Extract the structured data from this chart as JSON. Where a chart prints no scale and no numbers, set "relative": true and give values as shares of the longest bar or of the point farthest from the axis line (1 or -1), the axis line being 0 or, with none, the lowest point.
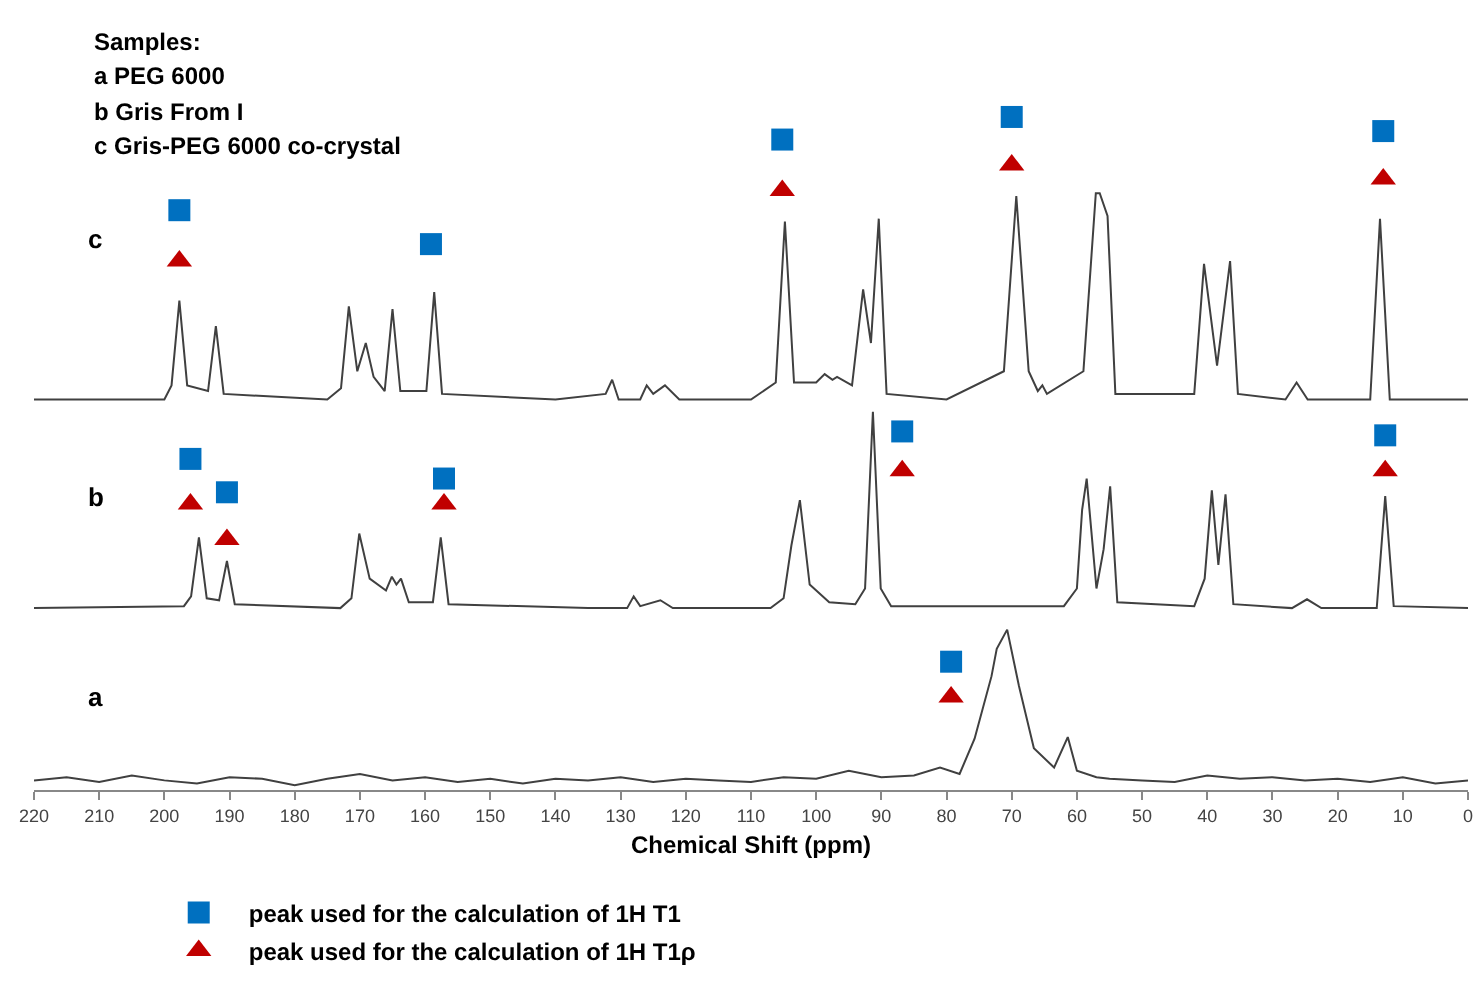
{
  "chart_data": [
    {
      "type": "line",
      "relative": true,
      "xlim": [
        220,
        0
      ],
      "tick_labels": false,
      "annotations": [
        "c",
        "Samples:",
        "a PEG 6000",
        "b Gris From I",
        "c Gris-PEG 6000 co-crystal"
      ],
      "series": [
        {
          "type": "line",
          "color": "#404040",
          "x": [
            220,
            200,
            198.9,
            197.7,
            196.5,
            193.3,
            192.1,
            190.9,
            175,
            172.9,
            171.7,
            170.4,
            169.1,
            167.9,
            166.2,
            165.0,
            163.8,
            159.8,
            158.6,
            157.4,
            140,
            132.3,
            131.3,
            130.3,
            127,
            126,
            125,
            123.2,
            121,
            110,
            106.2,
            104.8,
            103.4,
            100,
            98.7,
            97.5,
            96.8,
            94.5,
            92.8,
            91.6,
            90.4,
            89.2,
            80,
            71.2,
            69.3,
            67.4,
            66,
            65.3,
            64.6,
            59,
            57.1,
            56.5,
            55.3,
            54.1,
            42,
            40.5,
            38.5,
            36.5,
            35.3,
            28,
            26.3,
            24.6,
            15,
            13.5,
            12,
            0
          ],
          "values": [
            0,
            0,
            0.05,
            0.35,
            0.05,
            0.03,
            0.26,
            0.02,
            0,
            0.04,
            0.33,
            0.1,
            0.2,
            0.08,
            0.03,
            0.32,
            0.03,
            0.03,
            0.38,
            0.02,
            0,
            0.02,
            0.07,
            0,
            0,
            0.05,
            0.02,
            0.05,
            0,
            0,
            0.06,
            0.63,
            0.06,
            0.06,
            0.09,
            0.07,
            0.08,
            0.05,
            0.39,
            0.2,
            0.64,
            0.02,
            0,
            0.1,
            0.72,
            0.1,
            0.03,
            0.05,
            0.02,
            0.1,
            0.73,
            0.73,
            0.65,
            0.02,
            0.02,
            0.48,
            0.12,
            0.49,
            0.02,
            0,
            0.06,
            0,
            0,
            0.64,
            0,
            0
          ]
        },
        {
          "type": "scatter",
          "marker": "square",
          "color": "#0070c0",
          "x": [
            197.7,
            159.1,
            105.2,
            70.0,
            13.0
          ],
          "values": [
            0.67,
            0.55,
            0.92,
            1.0,
            0.95
          ]
        },
        {
          "type": "scatter",
          "marker": "triangle",
          "color": "#c00000",
          "x": [
            197.7,
            105.2,
            70.0,
            13.0
          ],
          "values": [
            0.49,
            0.74,
            0.83,
            0.78
          ]
        }
      ]
    },
    {
      "type": "line",
      "relative": true,
      "xlim": [
        220,
        0
      ],
      "tick_labels": false,
      "annotations": [
        "b"
      ],
      "series": [
        {
          "type": "line",
          "color": "#404040",
          "x": [
            220,
            197,
            195.9,
            194.7,
            193.5,
            191.6,
            190.4,
            189.2,
            173,
            171.3,
            170.1,
            168.5,
            166,
            165.1,
            164.4,
            163.7,
            162.5,
            158.8,
            157.6,
            156.4,
            135,
            129,
            128,
            127,
            123.9,
            122,
            107,
            105,
            103.8,
            102.5,
            101,
            98,
            94,
            92.5,
            91.3,
            90.1,
            88.5,
            62,
            60,
            59.2,
            58.5,
            57,
            55.9,
            54.9,
            53.8,
            42,
            40.4,
            39.3,
            38.3,
            37.2,
            36,
            27,
            24.7,
            22.5,
            14,
            12.7,
            11.4,
            0
          ],
          "values": [
            0,
            0.01,
            0.06,
            0.36,
            0.05,
            0.04,
            0.24,
            0.02,
            0,
            0.05,
            0.38,
            0.15,
            0.09,
            0.16,
            0.12,
            0.15,
            0.03,
            0.03,
            0.36,
            0.02,
            0,
            0,
            0.06,
            0.01,
            0.04,
            0,
            0,
            0.05,
            0.32,
            0.55,
            0.12,
            0.03,
            0.02,
            0.1,
            1.0,
            0.1,
            0.01,
            0.01,
            0.1,
            0.5,
            0.66,
            0.1,
            0.3,
            0.62,
            0.03,
            0.01,
            0.15,
            0.6,
            0.22,
            0.58,
            0.02,
            0,
            0.045,
            0,
            0,
            0.57,
            0.01,
            0
          ]
        },
        {
          "type": "scatter",
          "marker": "square",
          "color": "#0070c0",
          "x": [
            196.0,
            190.4,
            157.1,
            86.8,
            12.7
          ],
          "values": [
            0.76,
            0.59,
            0.66,
            0.9,
            0.88
          ]
        },
        {
          "type": "scatter",
          "marker": "triangle",
          "color": "#c00000",
          "x": [
            196.0,
            190.4,
            157.1,
            86.8,
            12.7
          ],
          "values": [
            0.53,
            0.35,
            0.53,
            0.7,
            0.7
          ]
        }
      ]
    },
    {
      "type": "line",
      "relative": true,
      "xlim": [
        220,
        0
      ],
      "xticks": [
        220,
        210,
        200,
        190,
        180,
        170,
        160,
        150,
        140,
        130,
        120,
        110,
        100,
        90,
        80,
        70,
        60,
        50,
        40,
        30,
        20,
        10,
        0
      ],
      "tick_labels": "x",
      "xlabel": "Chemical Shift (ppm)",
      "legend": "bottom left",
      "annotations": [
        "a"
      ],
      "series": [
        {
          "type": "line",
          "color": "#404040",
          "x": [
            220,
            215,
            210,
            205,
            200,
            195,
            190,
            185,
            180,
            175,
            170,
            165,
            160,
            155,
            150,
            145,
            140,
            135,
            130,
            125,
            120,
            115,
            110,
            105,
            100,
            95,
            90,
            85,
            81,
            78,
            75.7,
            73.1,
            72.3,
            70.7,
            68.9,
            66.6,
            63.5,
            61.4,
            60,
            57,
            55,
            50,
            45,
            40,
            35,
            30,
            25,
            20,
            15,
            10,
            5,
            0
          ],
          "values": [
            0.06,
            0.08,
            0.05,
            0.09,
            0.06,
            0.04,
            0.08,
            0.07,
            0.03,
            0.07,
            0.1,
            0.06,
            0.08,
            0.05,
            0.07,
            0.04,
            0.07,
            0.06,
            0.08,
            0.05,
            0.07,
            0.06,
            0.05,
            0.08,
            0.07,
            0.12,
            0.08,
            0.09,
            0.14,
            0.1,
            0.32,
            0.71,
            0.88,
            1.0,
            0.65,
            0.26,
            0.14,
            0.33,
            0.12,
            0.08,
            0.07,
            0.06,
            0.05,
            0.09,
            0.07,
            0.08,
            0.06,
            0.07,
            0.05,
            0.08,
            0.04,
            0.06
          ]
        },
        {
          "type": "scatter",
          "marker": "square",
          "name": "peak used for the calculation of 1H T1",
          "color": "#0070c0",
          "x": [
            79.3
          ],
          "values": [
            0.8
          ]
        },
        {
          "type": "scatter",
          "marker": "triangle",
          "name": "peak used for the calculation of 1H T1ρ",
          "color": "#c00000",
          "x": [
            79.3
          ],
          "values": [
            0.58
          ]
        }
      ]
    }
  ]
}
